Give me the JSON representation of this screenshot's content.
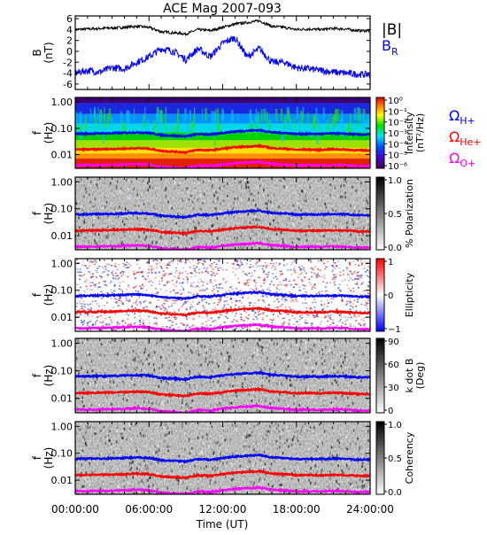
{
  "title": "ACE Mag 2007-093",
  "x_axis": {
    "label": "Time (UT)",
    "ticks": [
      "00:00:00",
      "06:00:00",
      "12:00:00",
      "18:00:00",
      "24:00:00"
    ],
    "range_hours": [
      0,
      24
    ]
  },
  "freq_axis": {
    "ticks": [
      "1.00",
      "0.10",
      "0.01"
    ],
    "tick_values": [
      1.0,
      0.1,
      0.01
    ],
    "range": [
      0.003,
      1.5
    ],
    "scale": "log"
  },
  "colors": {
    "B_total": "#000000",
    "B_R": "#0000ff",
    "gyro_H": "#0000ff",
    "gyro_He": "#ff0000",
    "gyro_O": "#ff00ff"
  },
  "legend_top": {
    "b_total": "|B|",
    "b_r_main": "B",
    "b_r_sub": "R"
  },
  "gyro_labels": [
    {
      "main": "Ω",
      "sub": "H+",
      "color": "#0000ff"
    },
    {
      "main": "Ω",
      "sub": "He+",
      "color": "#ff0000"
    },
    {
      "main": "Ω",
      "sub": "O+",
      "color": "#ff00ff"
    }
  ],
  "panels": [
    {
      "name": "magnetic-field",
      "ylabel_1": "B",
      "ylabel_2": "(nT)",
      "y_ticks": [
        "6",
        "4",
        "2",
        "0",
        "-2",
        "-4",
        "-6"
      ],
      "y_tick_values": [
        6,
        4,
        2,
        0,
        -2,
        -4,
        -6
      ],
      "ylim": [
        -7,
        6.5
      ]
    },
    {
      "name": "intensity",
      "ylabel_1": "f",
      "ylabel_2": "(Hz)",
      "colorbar": "rainbow",
      "cbar_label_1": "Intensity",
      "cbar_label_2": "(nT²/Hz)",
      "cbar_ticks": [
        "10⁰",
        "10⁻¹",
        "10⁻²",
        "10⁻³",
        "10⁻⁴",
        "10⁻⁵",
        "10⁻⁶"
      ]
    },
    {
      "name": "polarization",
      "ylabel_1": "f",
      "ylabel_2": "(Hz)",
      "colorbar": "gray",
      "cbar_label_1": "% Polarization",
      "cbar_label_2": "",
      "cbar_ticks": [
        "1.0",
        "0.5",
        "0.0"
      ]
    },
    {
      "name": "ellipticity",
      "ylabel_1": "f",
      "ylabel_2": "(Hz)",
      "colorbar": "bwr",
      "cbar_label_1": "Ellipticity",
      "cbar_label_2": "",
      "cbar_ticks": [
        "1",
        "0",
        "−1"
      ]
    },
    {
      "name": "k-dot-b",
      "ylabel_1": "f",
      "ylabel_2": "(Hz)",
      "colorbar": "gray",
      "cbar_label_1": "k dot B",
      "cbar_label_2": "(Deg)",
      "cbar_ticks": [
        "90",
        "60",
        "30",
        "0"
      ]
    },
    {
      "name": "coherency",
      "ylabel_1": "f",
      "ylabel_2": "(Hz)",
      "colorbar": "gray",
      "cbar_label_1": "Coherency",
      "cbar_label_2": "",
      "cbar_ticks": [
        "1.0",
        "0.5",
        "0.0"
      ]
    }
  ],
  "chart_data": {
    "type": "line",
    "title": "ACE Mag 2007-093",
    "xlabel": "Time (UT)",
    "x_hours": [
      0,
      1,
      2,
      3,
      4,
      5,
      6,
      7,
      8,
      9,
      10,
      11,
      12,
      13,
      14,
      15,
      16,
      17,
      18,
      19,
      20,
      21,
      22,
      23,
      24
    ],
    "series": [
      {
        "name": "|B|",
        "color": "#000000",
        "values": [
          4.0,
          4.1,
          4.2,
          4.3,
          4.4,
          4.6,
          4.4,
          3.6,
          3.4,
          3.2,
          4.0,
          3.8,
          4.4,
          5.0,
          5.3,
          5.6,
          4.6,
          4.4,
          4.0,
          4.1,
          4.0,
          4.2,
          4.1,
          3.8,
          3.8
        ]
      },
      {
        "name": "B_R",
        "color": "#0000ff",
        "values": [
          -4.0,
          -3.5,
          -3.8,
          -3.0,
          -3.2,
          -2.0,
          -1.0,
          0.5,
          0.0,
          -1.5,
          0.5,
          -1.0,
          1.5,
          2.5,
          -1.0,
          0.5,
          -2.0,
          -2.0,
          -3.0,
          -3.2,
          -3.5,
          -3.8,
          -4.0,
          -4.2,
          -4.3
        ]
      },
      {
        "name": "Ω_H+",
        "unit": "Hz",
        "color": "#0000ff",
        "values": [
          0.062,
          0.063,
          0.064,
          0.065,
          0.067,
          0.07,
          0.067,
          0.055,
          0.052,
          0.049,
          0.061,
          0.058,
          0.067,
          0.076,
          0.081,
          0.085,
          0.07,
          0.067,
          0.061,
          0.062,
          0.061,
          0.064,
          0.062,
          0.058,
          0.058
        ]
      },
      {
        "name": "Ω_He+",
        "unit": "Hz",
        "color": "#ff0000",
        "values": [
          0.0155,
          0.0157,
          0.016,
          0.0163,
          0.0168,
          0.0175,
          0.0168,
          0.0137,
          0.013,
          0.0122,
          0.0152,
          0.0145,
          0.0168,
          0.019,
          0.0202,
          0.0213,
          0.0175,
          0.0168,
          0.0152,
          0.0155,
          0.0152,
          0.016,
          0.0155,
          0.0145,
          0.0145
        ]
      },
      {
        "name": "Ω_O+",
        "unit": "Hz",
        "color": "#ff00ff",
        "values": [
          0.0039,
          0.0039,
          0.004,
          0.0041,
          0.0042,
          0.0044,
          0.0042,
          0.0034,
          0.0032,
          0.003,
          0.0038,
          0.0036,
          0.0042,
          0.0047,
          0.005,
          0.0053,
          0.0044,
          0.0042,
          0.0038,
          0.0039,
          0.0038,
          0.004,
          0.0039,
          0.0036,
          0.0036
        ]
      }
    ],
    "spectrogram_panels": [
      "Intensity",
      "% Polarization",
      "Ellipticity",
      "k dot B",
      "Coherency"
    ],
    "freq_range": [
      0.003,
      1.5
    ],
    "freq_scale": "log"
  }
}
